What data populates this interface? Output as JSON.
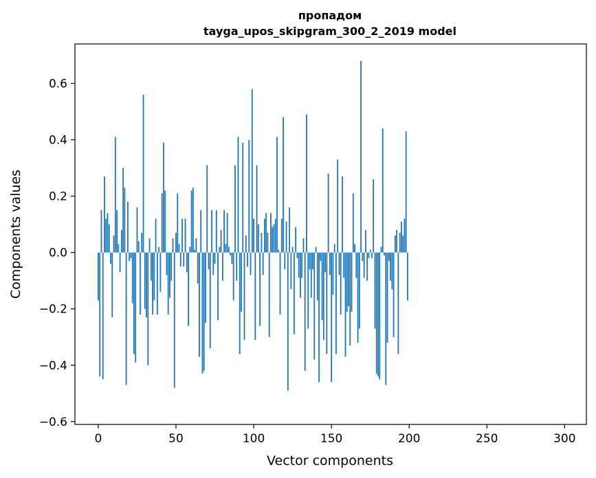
{
  "chart_data": {
    "type": "bar",
    "title_lines": [
      "пропадом",
      "tayga_upos_skipgram_300_2_2019 model"
    ],
    "xlabel": "Vector components",
    "ylabel": "Components values",
    "xlim": [
      -15,
      314
    ],
    "ylim": [
      -0.61,
      0.74
    ],
    "xticks": [
      0,
      50,
      100,
      150,
      200,
      250,
      300
    ],
    "yticks": [
      -0.6,
      -0.4,
      -0.2,
      0.0,
      0.2,
      0.4,
      0.6
    ],
    "ytick_labels": [
      "−0.6",
      "−0.4",
      "−0.2",
      "0.0",
      "0.2",
      "0.4",
      "0.6"
    ],
    "grid": false,
    "bar_color": "#1f77b4",
    "values": [
      -0.17,
      -0.44,
      0.15,
      -0.45,
      0.27,
      0.12,
      0.14,
      0.1,
      -0.04,
      -0.23,
      0.06,
      0.41,
      0.15,
      0.03,
      -0.07,
      0.08,
      0.3,
      0.23,
      -0.47,
      0.18,
      -0.03,
      -0.02,
      -0.18,
      -0.36,
      -0.39,
      0.16,
      0.04,
      -0.22,
      0.07,
      0.56,
      -0.2,
      -0.23,
      -0.4,
      0.05,
      -0.1,
      -0.22,
      -0.17,
      0.12,
      -0.22,
      0.02,
      -0.14,
      0.21,
      0.39,
      0.22,
      -0.08,
      -0.22,
      -0.16,
      -0.1,
      0.05,
      -0.48,
      0.07,
      0.21,
      0.03,
      -0.05,
      0.12,
      -0.05,
      0.12,
      -0.07,
      -0.26,
      0.02,
      0.22,
      0.23,
      0.01,
      0.05,
      -0.11,
      -0.37,
      0.15,
      -0.43,
      -0.42,
      -0.25,
      0.31,
      -0.06,
      -0.34,
      0.15,
      -0.08,
      -0.04,
      0.15,
      -0.24,
      0.02,
      0.08,
      -0.1,
      0.15,
      0.03,
      0.14,
      0.02,
      -0.01,
      -0.04,
      -0.17,
      0.31,
      -0.1,
      0.41,
      -0.36,
      -0.21,
      0.39,
      -0.31,
      0.06,
      -0.05,
      0.4,
      -0.08,
      0.58,
      0.12,
      -0.31,
      0.31,
      0.1,
      -0.26,
      0.07,
      -0.08,
      0.12,
      0.14,
      0.07,
      -0.3,
      0.14,
      0.09,
      0.1,
      0.12,
      0.41,
      0.01,
      -0.22,
      0.12,
      0.48,
      -0.06,
      0.11,
      -0.49,
      0.16,
      -0.13,
      0.02,
      -0.29,
      0.09,
      -0.02,
      -0.09,
      -0.16,
      -0.09,
      0.05,
      -0.42,
      0.49,
      -0.27,
      -0.06,
      -0.16,
      -0.06,
      -0.38,
      0.02,
      -0.17,
      -0.46,
      -0.03,
      -0.24,
      -0.31,
      -0.07,
      -0.36,
      0.28,
      -0.08,
      -0.46,
      -0.15,
      0.03,
      -0.36,
      0.33,
      -0.08,
      -0.22,
      0.27,
      -0.09,
      -0.37,
      -0.21,
      -0.19,
      -0.33,
      -0.21,
      0.21,
      0.03,
      -0.09,
      -0.32,
      -0.27,
      0.68,
      -0.03,
      -0.09,
      0.08,
      -0.1,
      -0.02,
      0.01,
      -0.02,
      0.26,
      -0.27,
      -0.43,
      -0.44,
      -0.45,
      0.02,
      0.44,
      -0.01,
      -0.47,
      -0.32,
      -0.03,
      -0.1,
      -0.13,
      -0.3,
      0.06,
      0.08,
      -0.36,
      0.07,
      0.11,
      0.06,
      0.12,
      0.43,
      -0.17
    ]
  }
}
